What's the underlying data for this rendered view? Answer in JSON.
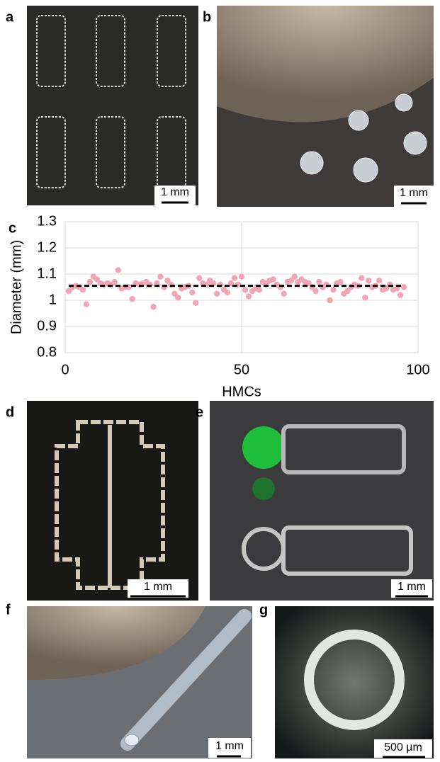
{
  "panels": {
    "a": {
      "label": "a",
      "scale_bar": "1 mm"
    },
    "b": {
      "label": "b",
      "scale_bar": "1 mm"
    },
    "d": {
      "label": "d",
      "scale_bar": "1 mm"
    },
    "e": {
      "label": "e",
      "scale_bar": "1 mm"
    },
    "f": {
      "label": "f",
      "scale_bar": "1 mm"
    },
    "g": {
      "label": "g",
      "scale_bar": "500 µm"
    }
  },
  "chart_data": {
    "type": "scatter",
    "panel_label": "c",
    "x_label": "HMCs",
    "y_label": "Diameter (mm)",
    "xlim": [
      0,
      100
    ],
    "xticks": [
      0,
      50,
      100
    ],
    "ylim": [
      0.8,
      1.3
    ],
    "yticks": [
      0.8,
      0.9,
      1,
      1.1,
      1.2,
      1.3
    ],
    "grid": true,
    "color": "#f2a5b4",
    "reference_line": 1.055,
    "x": [
      1,
      2,
      3,
      4,
      5,
      6,
      7,
      8,
      9,
      10,
      11,
      12,
      13,
      14,
      15,
      16,
      17,
      18,
      19,
      20,
      21,
      22,
      23,
      24,
      25,
      26,
      27,
      28,
      29,
      30,
      31,
      32,
      33,
      34,
      35,
      36,
      37,
      38,
      39,
      40,
      41,
      42,
      43,
      44,
      45,
      46,
      47,
      48,
      49,
      50,
      51,
      52,
      53,
      54,
      55,
      56,
      57,
      58,
      59,
      60,
      61,
      62,
      63,
      64,
      65,
      66,
      67,
      68,
      69,
      70,
      71,
      72,
      73,
      74,
      75,
      76,
      77,
      78,
      79,
      80,
      81,
      82,
      83,
      84,
      85,
      86,
      87,
      88,
      89,
      90,
      91,
      92,
      93,
      94,
      95,
      96
    ],
    "values": [
      1.035,
      1.05,
      1.055,
      1.05,
      1.04,
      0.985,
      1.07,
      1.09,
      1.08,
      1.065,
      1.06,
      1.065,
      1.06,
      1.07,
      1.115,
      1.045,
      1.05,
      1.05,
      1.005,
      1.065,
      1.06,
      1.065,
      1.07,
      1.06,
      0.975,
      1.065,
      1.09,
      1.05,
      1.075,
      1.06,
      1.025,
      1.01,
      1.045,
      1.05,
      1.055,
      1.03,
      0.99,
      1.085,
      1.065,
      1.06,
      1.075,
      1.065,
      1.025,
      1.06,
      1.04,
      1.03,
      1.065,
      1.085,
      1.06,
      1.09,
      1.04,
      1.015,
      1.035,
      1.045,
      1.04,
      1.07,
      1.065,
      1.075,
      1.08,
      1.06,
      1.05,
      1.025,
      1.07,
      1.075,
      1.09,
      1.07,
      1.08,
      1.07,
      1.065,
      1.05,
      1.035,
      1.07,
      1.05,
      1.06,
      1.0,
      1.04,
      1.065,
      1.07,
      1.025,
      1.035,
      1.05,
      1.06,
      1.055,
      1.085,
      1.01,
      1.075,
      1.05,
      1.055,
      1.075,
      1.04,
      1.045,
      1.06,
      1.04,
      1.045,
      1.02,
      1.05
    ]
  }
}
